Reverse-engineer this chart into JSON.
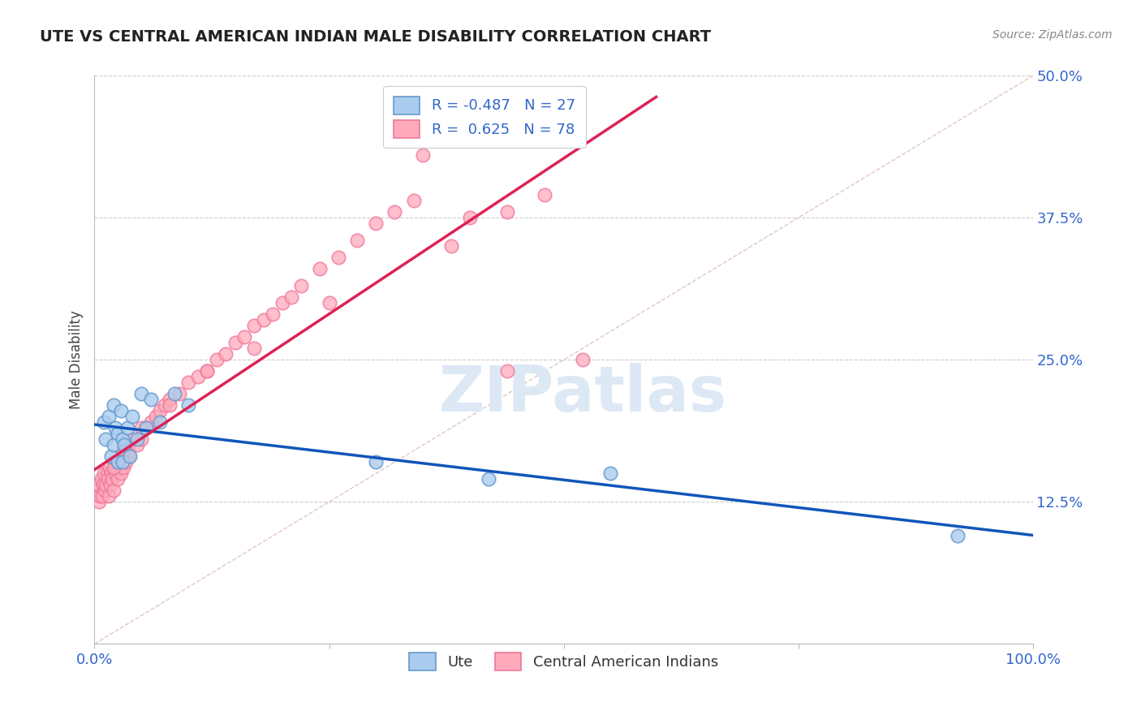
{
  "title": "UTE VS CENTRAL AMERICAN INDIAN MALE DISABILITY CORRELATION CHART",
  "source": "Source: ZipAtlas.com",
  "ylabel": "Male Disability",
  "xlim": [
    0,
    100
  ],
  "ylim": [
    0,
    50
  ],
  "ytick_values": [
    12.5,
    25.0,
    37.5,
    50.0
  ],
  "xtick_values": [
    0,
    25,
    50,
    75,
    100
  ],
  "xtick_labels": [
    "0.0%",
    "",
    "",
    "",
    "100.0%"
  ],
  "R_ute": -0.487,
  "N_ute": 27,
  "R_ca": 0.625,
  "N_ca": 78,
  "ute_face": "#aaccee",
  "ute_edge": "#6699cc",
  "ca_face": "#ffaabb",
  "ca_edge": "#ee7799",
  "trend_ute": "#1155bb",
  "trend_ca": "#dd2255",
  "diagonal_color": "#ddbbbb",
  "bg": "#ffffff",
  "grid_color": "#cccccc",
  "title_color": "#222222",
  "tick_color": "#3366cc",
  "watermark_color": "#dde8f5",
  "ute_x": [
    1.0,
    1.2,
    1.5,
    1.8,
    2.0,
    2.0,
    2.2,
    2.5,
    2.5,
    2.8,
    3.0,
    3.0,
    3.2,
    3.5,
    3.8,
    4.0,
    4.5,
    5.0,
    5.5,
    6.0,
    7.0,
    8.5,
    10.0,
    30.0,
    42.0,
    55.0,
    92.0
  ],
  "ute_y": [
    19.5,
    18.0,
    20.0,
    16.5,
    21.0,
    17.5,
    19.0,
    18.5,
    16.0,
    20.5,
    18.0,
    16.0,
    17.5,
    19.0,
    16.5,
    20.0,
    18.0,
    22.0,
    19.0,
    21.5,
    19.5,
    22.0,
    21.0,
    16.0,
    14.5,
    15.0,
    9.5
  ],
  "ca_x": [
    0.3,
    0.4,
    0.5,
    0.6,
    0.7,
    0.8,
    0.9,
    1.0,
    1.1,
    1.2,
    1.3,
    1.4,
    1.5,
    1.6,
    1.7,
    1.8,
    1.9,
    2.0,
    2.1,
    2.2,
    2.3,
    2.4,
    2.5,
    2.6,
    2.7,
    2.8,
    2.9,
    3.0,
    3.1,
    3.2,
    3.3,
    3.4,
    3.5,
    3.6,
    3.7,
    4.0,
    4.5,
    5.0,
    5.5,
    6.0,
    6.5,
    7.0,
    7.5,
    8.0,
    9.0,
    10.0,
    11.0,
    12.0,
    13.0,
    14.0,
    15.0,
    16.0,
    17.0,
    18.0,
    19.0,
    20.0,
    21.0,
    22.0,
    24.0,
    26.0,
    28.0,
    30.0,
    32.0,
    34.0,
    35.0,
    38.0,
    40.0,
    44.0,
    48.0,
    52.0,
    44.0,
    25.0,
    17.0,
    12.0,
    8.0,
    5.0,
    3.0,
    2.0
  ],
  "ca_y": [
    13.5,
    14.0,
    12.5,
    13.0,
    14.5,
    13.0,
    14.0,
    15.0,
    13.5,
    14.0,
    15.0,
    14.5,
    13.0,
    15.5,
    14.0,
    15.0,
    14.5,
    13.5,
    16.0,
    15.0,
    15.5,
    16.0,
    14.5,
    16.0,
    15.5,
    15.0,
    16.5,
    16.0,
    15.5,
    16.5,
    16.0,
    17.0,
    16.5,
    17.0,
    16.5,
    18.0,
    17.5,
    18.0,
    19.0,
    19.5,
    20.0,
    20.5,
    21.0,
    21.5,
    22.0,
    23.0,
    23.5,
    24.0,
    25.0,
    25.5,
    26.5,
    27.0,
    28.0,
    28.5,
    29.0,
    30.0,
    30.5,
    31.5,
    33.0,
    34.0,
    35.5,
    37.0,
    38.0,
    39.0,
    43.0,
    35.0,
    37.5,
    38.0,
    39.5,
    25.0,
    24.0,
    30.0,
    26.0,
    24.0,
    21.0,
    19.0,
    17.0,
    15.5
  ]
}
